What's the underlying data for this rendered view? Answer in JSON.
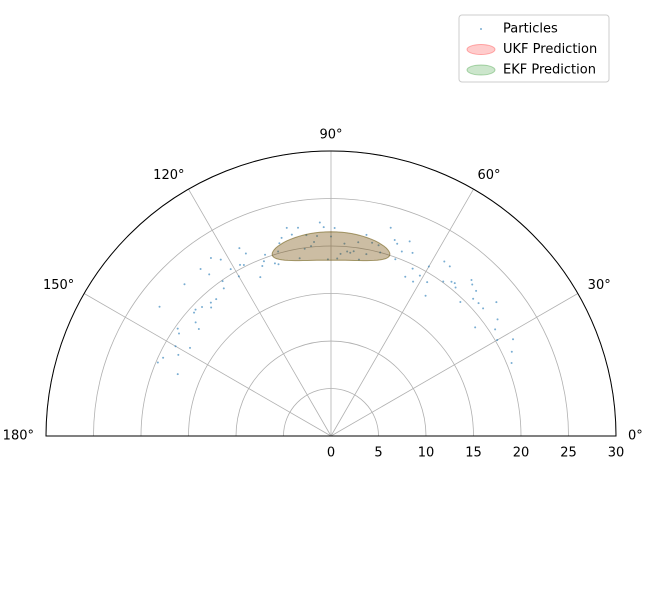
{
  "chart_data": {
    "type": "polar",
    "xlim": [
      0,
      180
    ],
    "ylim": [
      0,
      30
    ],
    "yticks": [
      0,
      5,
      10,
      15,
      20,
      25,
      30
    ],
    "xticks": [
      {
        "value": 0,
        "label": "0°"
      },
      {
        "value": 30,
        "label": "30°"
      },
      {
        "value": 60,
        "label": "60°"
      },
      {
        "value": 90,
        "label": "90°"
      },
      {
        "value": 120,
        "label": "120°"
      },
      {
        "value": 150,
        "label": "150°"
      },
      {
        "value": 180,
        "label": "180°"
      }
    ],
    "grid": true,
    "legend": "upper right",
    "series": [
      {
        "name": "Particles",
        "type": "scatter",
        "color": "#1f77b4",
        "x": [
          90,
          85,
          95,
          80,
          100,
          75,
          105,
          70,
          110,
          65,
          115,
          60,
          120,
          55,
          125,
          50,
          130,
          45,
          135,
          40,
          140,
          35,
          145,
          30,
          150,
          25,
          155,
          92,
          88,
          97,
          83,
          102,
          78,
          107,
          72,
          112,
          68,
          117,
          62,
          122,
          58,
          128,
          52,
          133,
          47,
          138,
          42,
          143,
          37,
          148,
          87,
          93,
          91,
          89,
          96,
          84,
          99,
          81,
          104,
          76,
          108,
          74,
          114,
          66,
          118,
          64,
          124,
          56,
          127,
          54,
          132,
          48,
          137,
          44,
          141,
          39,
          146,
          33,
          152,
          28,
          157,
          22,
          158,
          86,
          94,
          98,
          82,
          101,
          79,
          106,
          71,
          111,
          69,
          116,
          61,
          121,
          57,
          126,
          51,
          134,
          46
        ],
        "values": [
          21,
          19.5,
          20.5,
          21.5,
          19,
          20,
          21,
          19.8,
          20.3,
          18.5,
          21.2,
          20.6,
          19.4,
          21.8,
          19.9,
          20.4,
          18.8,
          21.6,
          19.2,
          20.9,
          18.6,
          21.4,
          19.7,
          20.2,
          18.9,
          21,
          19.5,
          22,
          18.7,
          21.3,
          19.6,
          22.4,
          20.8,
          18.9,
          21.7,
          19.3,
          22.1,
          20.2,
          18.4,
          21.9,
          19.1,
          22.3,
          20.6,
          18.5,
          21.8,
          19.4,
          20.9,
          22.6,
          19,
          17.5,
          19.2,
          22.5,
          18.6,
          21.9,
          20.1,
          19.4,
          22.2,
          18.8,
          21.5,
          20.7,
          19.1,
          22.8,
          18.3,
          21.1,
          20.4,
          19.6,
          22.6,
          17.8,
          21.3,
          20.1,
          18.9,
          22.1,
          19.5,
          20.8,
          17.9,
          22.4,
          19.3,
          20.6,
          18.2,
          21.7,
          19.8,
          20.5,
          17.4,
          20.3,
          21.1,
          19.9,
          20.6,
          21.6,
          19.5,
          20.2,
          21.4,
          19.7,
          20.8,
          22.0,
          19.3,
          20.5,
          21.9,
          19.2,
          20.7,
          22.2,
          19.6
        ]
      },
      {
        "name": "UKF Prediction",
        "type": "ellipse",
        "color": "#ff0000",
        "center": [
          90,
          20
        ],
        "width": 36,
        "height": 3
      },
      {
        "name": "EKF Prediction",
        "type": "ellipse",
        "color": "#008000",
        "center": [
          90,
          20
        ],
        "width": 36,
        "height": 3
      }
    ]
  }
}
